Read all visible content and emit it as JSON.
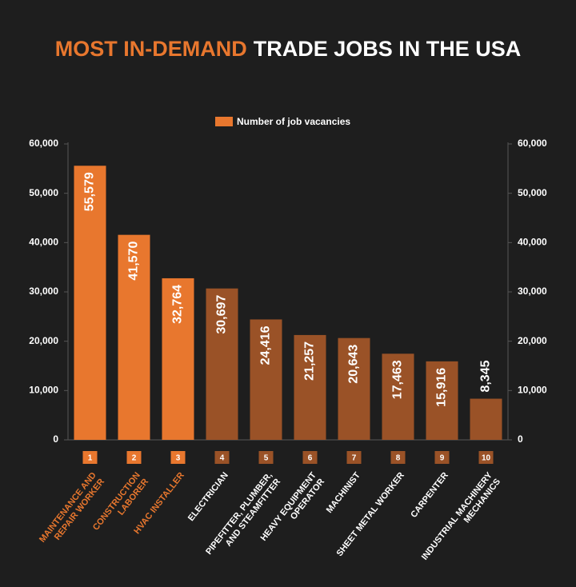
{
  "chart_data": {
    "type": "bar",
    "title_highlight": "MOST IN-DEMAND",
    "title": "TRADE JOBS IN THE USA",
    "highlight_color": "#e8772e",
    "categories": [
      "MAINTENANCE AND\nREPAIR WORKER",
      "CONSTRUCTION\nLABORER",
      "HVAC INSTALLER",
      "ELECTRICIAN",
      "PIPEFITTER, PLUMBER,\nAND STEAMFITTER",
      "HEAVY EQUIPMENT\nOPERATOR",
      "MACHINIST",
      "SHEET METAL WORKER",
      "CARPENTER",
      "INDUSTRIAL MACHINERY\nMECHANICS"
    ],
    "ranks": [
      1,
      2,
      3,
      4,
      5,
      6,
      7,
      8,
      9,
      10
    ],
    "series": [
      {
        "name": "Number of job vacancies",
        "color": "#e8772e",
        "colors": [
          "#e8772e",
          "#e8772e",
          "#e8772e",
          "#9a5227",
          "#9a5227",
          "#9a5227",
          "#9a5227",
          "#9a5227",
          "#9a5227",
          "#9a5227"
        ],
        "values": [
          55579,
          41570,
          32764,
          30697,
          24416,
          21257,
          20643,
          17463,
          15916,
          8345
        ],
        "value_labels": [
          "55,579",
          "41,570",
          "32,764",
          "30,697",
          "24,416",
          "21,257",
          "20,643",
          "17,463",
          "15,916",
          "8,345"
        ]
      }
    ],
    "ylim": [
      0,
      60000
    ],
    "yticks": [
      0,
      {
        "value": 10000,
        "label": "10,000"
      },
      {
        "value": 20000,
        "label": "20,000"
      },
      {
        "value": 30000,
        "label": "30,000"
      },
      {
        "value": 40000,
        "label": "40,000"
      },
      {
        "value": 50000,
        "label": "50,000"
      },
      {
        "value": 60000,
        "label": "60,000"
      }
    ],
    "y2lim": [
      0,
      60000
    ],
    "y2ticks": [
      0,
      {
        "value": 10000,
        "label": "10,000"
      },
      {
        "value": 20000,
        "label": "20,000"
      },
      {
        "value": 30000,
        "label": "30,000"
      },
      {
        "value": 40000,
        "label": "40,000"
      },
      {
        "value": 50000,
        "label": "50,000"
      },
      {
        "value": 60000,
        "label": "60,000"
      }
    ]
  }
}
